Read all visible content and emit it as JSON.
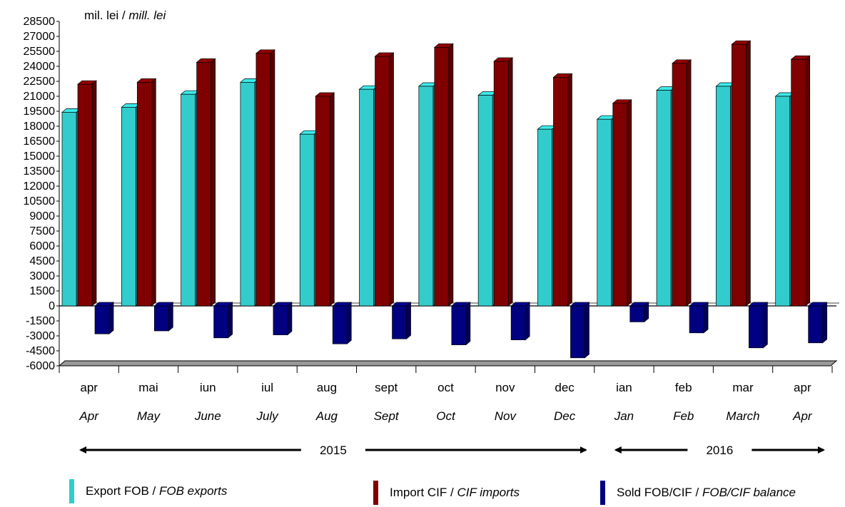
{
  "chart_data": {
    "type": "bar",
    "unit_label": {
      "ro": "mil. lei",
      "sep": " / ",
      "en": "mill. lei"
    },
    "categories": [
      {
        "ro": "apr",
        "en": "Apr"
      },
      {
        "ro": "mai",
        "en": "May"
      },
      {
        "ro": "iun",
        "en": "June"
      },
      {
        "ro": "iul",
        "en": "July"
      },
      {
        "ro": "aug",
        "en": "Aug"
      },
      {
        "ro": "sept",
        "en": "Sept"
      },
      {
        "ro": "oct",
        "en": "Oct"
      },
      {
        "ro": "nov",
        "en": "Nov"
      },
      {
        "ro": "dec",
        "en": "Dec"
      },
      {
        "ro": "ian",
        "en": "Jan"
      },
      {
        "ro": "feb",
        "en": "Feb"
      },
      {
        "ro": "mar",
        "en": "March"
      },
      {
        "ro": "apr",
        "en": "Apr"
      }
    ],
    "years": [
      {
        "label": "2015",
        "first": 0,
        "last": 8
      },
      {
        "label": "2016",
        "first": 9,
        "last": 12
      }
    ],
    "series": [
      {
        "name_ro": "Export FOB",
        "name_en": "FOB exports",
        "color": "#33CCCC",
        "values": [
          19400,
          19900,
          21200,
          22400,
          17200,
          21700,
          22000,
          21100,
          17700,
          18700,
          21600,
          22000,
          21000
        ]
      },
      {
        "name_ro": "Import CIF",
        "name_en": "CIF imports",
        "color": "#800000",
        "values": [
          22200,
          22400,
          24400,
          25300,
          21000,
          25000,
          25900,
          24500,
          22900,
          20300,
          24300,
          26200,
          24700
        ]
      },
      {
        "name_ro": "Sold FOB/CIF",
        "name_en": "FOB/CIF balance",
        "color": "#000080",
        "values": [
          -2800,
          -2500,
          -3200,
          -2900,
          -3800,
          -3300,
          -3900,
          -3400,
          -5200,
          -1600,
          -2700,
          -4200,
          -3700
        ]
      }
    ],
    "ylim": [
      -6000,
      28500
    ],
    "yticks": [
      -6000,
      -4500,
      -3000,
      -1500,
      0,
      1500,
      3000,
      4500,
      6000,
      7500,
      9000,
      10500,
      12000,
      13500,
      15000,
      16500,
      18000,
      19500,
      21000,
      22500,
      24000,
      25500,
      27000,
      28500
    ],
    "grid": false,
    "legend_position": "bottom"
  }
}
